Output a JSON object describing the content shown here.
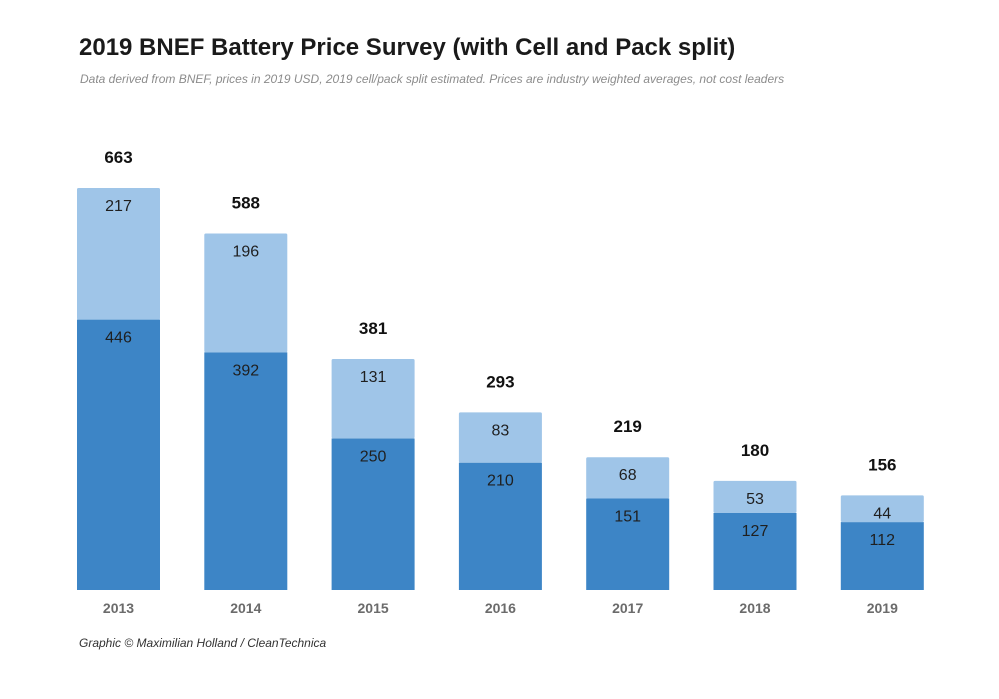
{
  "title": "2019 BNEF Battery Price Survey (with Cell and Pack split)",
  "subtitle": "Data derived from BNEF, prices in 2019 USD, 2019 cell/pack split estimated. Prices are industry weighted averages, not cost leaders",
  "footer": "Graphic © Maximilian Holland / CleanTechnica",
  "chart_data": {
    "type": "bar",
    "stacked": true,
    "categories": [
      "2013",
      "2014",
      "2015",
      "2016",
      "2017",
      "2018",
      "2019"
    ],
    "series": [
      {
        "values": [
          446,
          392,
          250,
          210,
          151,
          127,
          112
        ],
        "color": "#3d85c6"
      },
      {
        "values": [
          217,
          196,
          131,
          83,
          68,
          53,
          44
        ],
        "color": "#9fc5e8"
      }
    ],
    "totals": [
      663,
      588,
      381,
      293,
      219,
      180,
      156
    ],
    "ylim": [
      0,
      663
    ],
    "grid": false,
    "legend": "none",
    "xlabel": "",
    "ylabel": ""
  }
}
